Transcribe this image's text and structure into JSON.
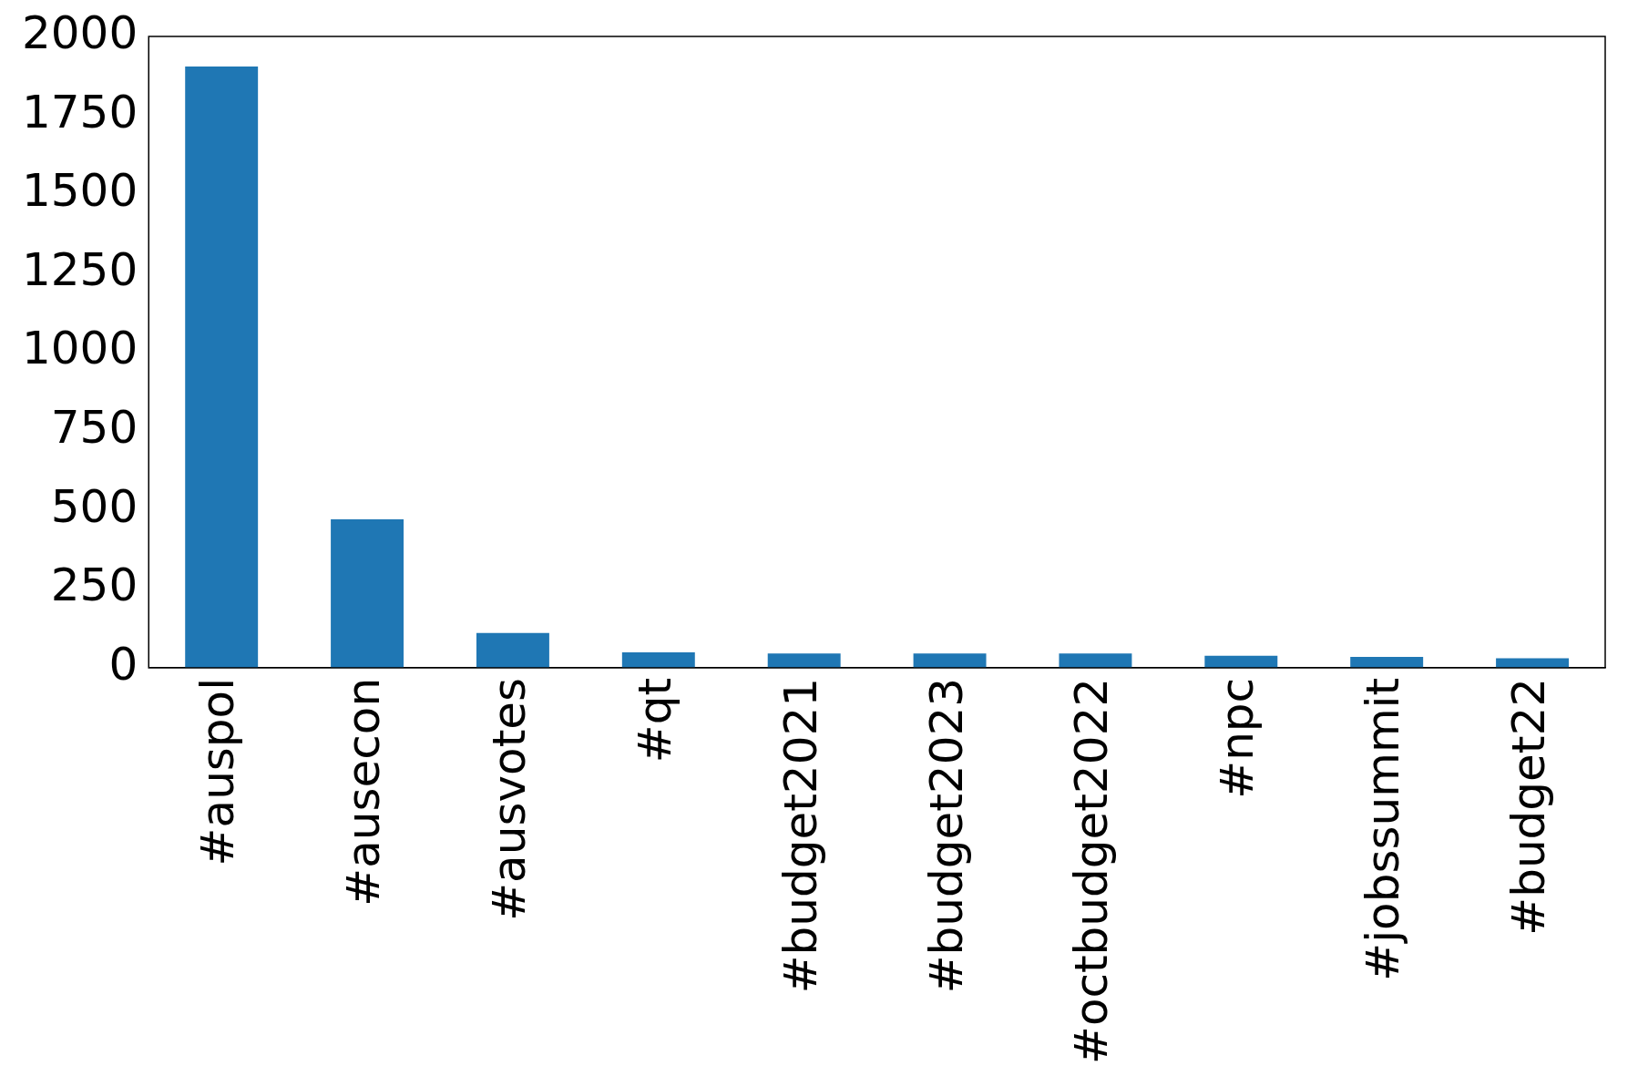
{
  "chart_data": {
    "type": "bar",
    "categories": [
      "#auspol",
      "#ausecon",
      "#ausvotes",
      "#qt",
      "#budget2021",
      "#budget2023",
      "#octbudget2022",
      "#npc",
      "#jobssummit",
      "#budget22"
    ],
    "values": [
      1905,
      470,
      110,
      49,
      45,
      45,
      45,
      38,
      34,
      30
    ],
    "color": "#1f77b4",
    "ylim": [
      0,
      2000
    ],
    "yticks": [
      0,
      250,
      500,
      750,
      1000,
      1250,
      1500,
      1750,
      2000
    ],
    "grid": false,
    "legend": false
  }
}
